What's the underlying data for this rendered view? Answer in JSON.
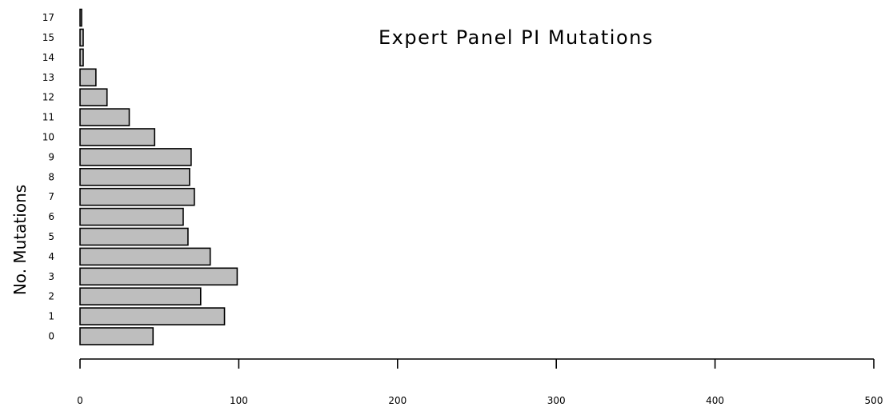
{
  "chart_data": {
    "type": "bar",
    "orientation": "horizontal",
    "title": "Expert Panel PI Mutations",
    "xlabel": "",
    "ylabel": "No. Mutations",
    "xlim": [
      0,
      500
    ],
    "x_ticks": [
      0,
      100,
      200,
      300,
      400,
      500
    ],
    "categories": [
      "0",
      "1",
      "2",
      "3",
      "4",
      "5",
      "6",
      "7",
      "8",
      "9",
      "10",
      "11",
      "12",
      "13",
      "14",
      "15",
      "17"
    ],
    "values": [
      46,
      91,
      76,
      99,
      82,
      68,
      65,
      72,
      69,
      70,
      47,
      31,
      17,
      10,
      2,
      2,
      1
    ],
    "bar_color": "#bebebe",
    "edge_color": "#000000",
    "grid": false,
    "legend": "none"
  }
}
